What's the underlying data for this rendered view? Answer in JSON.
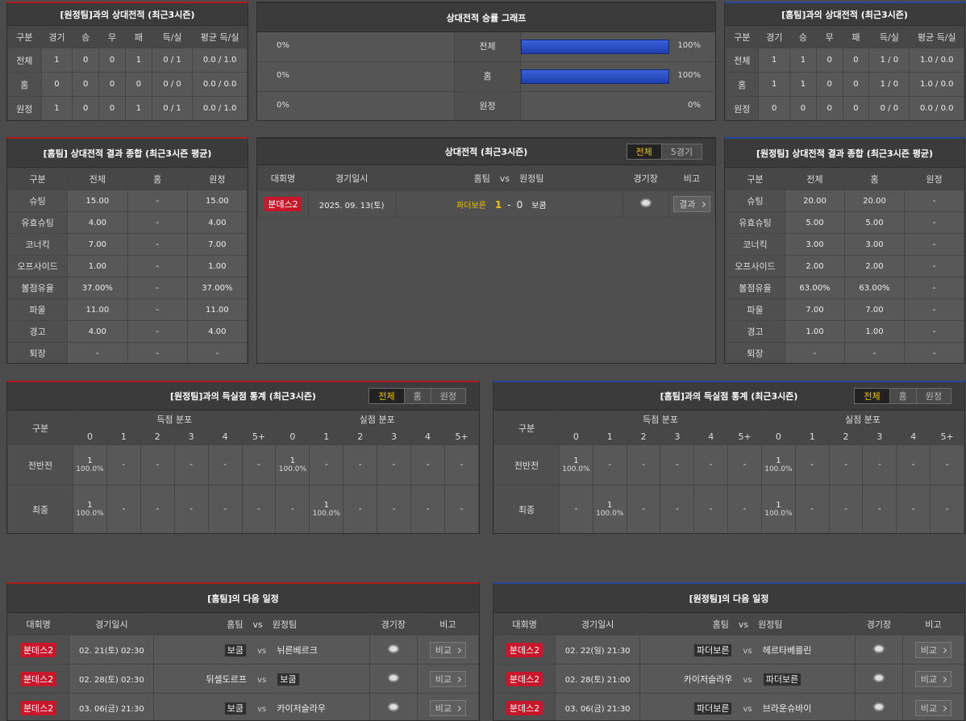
{
  "h2h_away": {
    "title": "[원정팀]과의 상대전적 (최근3시즌)",
    "columns": [
      "구분",
      "경기",
      "승",
      "무",
      "패",
      "득/실",
      "평균 득/실"
    ],
    "rows": [
      [
        "전체",
        "1",
        "0",
        "0",
        "1",
        "0 / 1",
        "0.0 / 1.0"
      ],
      [
        "홈",
        "0",
        "0",
        "0",
        "0",
        "0 / 0",
        "0.0 / 0.0"
      ],
      [
        "원정",
        "1",
        "0",
        "0",
        "1",
        "0 / 1",
        "0.0 / 1.0"
      ]
    ]
  },
  "graph": {
    "title": "상대전적 승률 그래프",
    "rows": [
      {
        "label": "전체",
        "values": [
          0,
          100
        ],
        "value_labels": [
          "0%",
          "100%"
        ]
      },
      {
        "label": "홈",
        "values": [
          0,
          100
        ],
        "value_labels": [
          "0%",
          "100%"
        ]
      },
      {
        "label": "원정",
        "values": [
          0,
          0
        ],
        "value_labels": [
          "0%",
          "0%"
        ]
      }
    ]
  },
  "h2h_home": {
    "title": "[홈팀]과의 상대전적 (최근3시즌)",
    "columns": [
      "구분",
      "경기",
      "승",
      "무",
      "패",
      "득/실",
      "평균 득/실"
    ],
    "rows": [
      [
        "전체",
        "1",
        "1",
        "0",
        "0",
        "1 / 0",
        "1.0 / 0.0"
      ],
      [
        "홈",
        "1",
        "1",
        "0",
        "0",
        "1 / 0",
        "1.0 / 0.0"
      ],
      [
        "원정",
        "0",
        "0",
        "0",
        "0",
        "0 / 0",
        "0.0 / 0.0"
      ]
    ]
  },
  "summary_home": {
    "title": "[홈팀] 상대전적 결과 종합 (최근3시즌 평균)",
    "columns": [
      "구분",
      "전체",
      "홈",
      "원정"
    ],
    "rows": [
      [
        "슈팅",
        "15.00",
        "-",
        "15.00"
      ],
      [
        "유효슈팅",
        "4.00",
        "-",
        "4.00"
      ],
      [
        "코너킥",
        "7.00",
        "-",
        "7.00"
      ],
      [
        "오프사이드",
        "1.00",
        "-",
        "1.00"
      ],
      [
        "볼점유율",
        "37.00%",
        "-",
        "37.00%"
      ],
      [
        "파울",
        "11.00",
        "-",
        "11.00"
      ],
      [
        "경고",
        "4.00",
        "-",
        "4.00"
      ],
      [
        "퇴장",
        "-",
        "-",
        "-"
      ]
    ]
  },
  "matches": {
    "title": "상대전적 (최근3시즌)",
    "tabs": [
      "전체",
      "5경기"
    ],
    "active_tab": 0,
    "columns": [
      "대회명",
      "경기일시",
      "홈팀",
      "vs",
      "원정팀",
      "경기장",
      "비고"
    ],
    "score_separator": "-",
    "button": "결과",
    "rows": [
      {
        "league": "분데스2",
        "date": "2025. 09. 13(토)",
        "home": "파더보른",
        "home_score": 1,
        "away_score": 0,
        "away": "보쿰"
      }
    ]
  },
  "summary_away": {
    "title": "[원정팀] 상대전적 결과 종합 (최근3시즌 평균)",
    "columns": [
      "구분",
      "전체",
      "홈",
      "원정"
    ],
    "rows": [
      [
        "슈팅",
        "20.00",
        "20.00",
        "-"
      ],
      [
        "유효슈팅",
        "5.00",
        "5.00",
        "-"
      ],
      [
        "코너킥",
        "3.00",
        "3.00",
        "-"
      ],
      [
        "오프사이드",
        "2.00",
        "2.00",
        "-"
      ],
      [
        "볼점유율",
        "63.00%",
        "63.00%",
        "-"
      ],
      [
        "파울",
        "7.00",
        "7.00",
        "-"
      ],
      [
        "경고",
        "1.00",
        "1.00",
        "-"
      ],
      [
        "퇴장",
        "-",
        "-",
        "-"
      ]
    ]
  },
  "goals_away": {
    "title": "[원정팀]과의 득실점 통계 (최근3시즌)",
    "tabs": [
      "전체",
      "홈",
      "원정"
    ],
    "active_tab": 0,
    "label_column": "구분",
    "groups": [
      "득점 분포",
      "실점 분포"
    ],
    "goal_columns": [
      "0",
      "1",
      "2",
      "3",
      "4",
      "5+"
    ],
    "rows": [
      {
        "label": "전반전",
        "scored": [
          [
            "1",
            "100.0%"
          ],
          "-",
          "-",
          "-",
          "-",
          "-"
        ],
        "conceded": [
          [
            "1",
            "100.0%"
          ],
          "-",
          "-",
          "-",
          "-",
          "-"
        ]
      },
      {
        "label": "최종",
        "scored": [
          [
            "1",
            "100.0%"
          ],
          "-",
          "-",
          "-",
          "-",
          "-"
        ],
        "conceded": [
          "-",
          [
            "1",
            "100.0%"
          ],
          "-",
          "-",
          "-",
          "-"
        ]
      }
    ]
  },
  "goals_home": {
    "title": "[홈팀]과의 득실점 통계 (최근3시즌)",
    "tabs": [
      "전체",
      "홈",
      "원정"
    ],
    "active_tab": 0,
    "label_column": "구분",
    "groups": [
      "득점 분포",
      "실점 분포"
    ],
    "goal_columns": [
      "0",
      "1",
      "2",
      "3",
      "4",
      "5+"
    ],
    "rows": [
      {
        "label": "전반전",
        "scored": [
          [
            "1",
            "100.0%"
          ],
          "-",
          "-",
          "-",
          "-",
          "-"
        ],
        "conceded": [
          [
            "1",
            "100.0%"
          ],
          "-",
          "-",
          "-",
          "-",
          "-"
        ]
      },
      {
        "label": "최종",
        "scored": [
          "-",
          [
            "1",
            "100.0%"
          ],
          "-",
          "-",
          "-",
          "-"
        ],
        "conceded": [
          [
            "1",
            "100.0%"
          ],
          "-",
          "-",
          "-",
          "-",
          "-"
        ]
      }
    ]
  },
  "next_home": {
    "title": "[홈팀]의 다음 일정",
    "columns": [
      "대회명",
      "경기일시",
      "홈팀",
      "vs",
      "원정팀",
      "경기장",
      "비고"
    ],
    "button": "비교",
    "rows": [
      {
        "league": "분데스2",
        "date": "02. 21(토) 02:30",
        "home": "보쿰",
        "away": "뉘른베르크",
        "highlight": "home"
      },
      {
        "league": "분데스2",
        "date": "02. 28(토) 02:30",
        "home": "뒤셀도르프",
        "away": "보쿰",
        "highlight": "away"
      },
      {
        "league": "분데스2",
        "date": "03. 06(금) 21:30",
        "home": "보쿰",
        "away": "카이저슬라우",
        "highlight": "home"
      }
    ]
  },
  "next_away": {
    "title": "[원정팀]의 다음 일정",
    "columns": [
      "대회명",
      "경기일시",
      "홈팀",
      "vs",
      "원정팀",
      "경기장",
      "비고"
    ],
    "button": "비교",
    "rows": [
      {
        "league": "분데스2",
        "date": "02. 22(일) 21:30",
        "home": "파더보른",
        "away": "헤르타베를린",
        "highlight": "home"
      },
      {
        "league": "분데스2",
        "date": "02. 28(토) 21:00",
        "home": "카이저슬라우",
        "away": "파더보른",
        "highlight": "away"
      },
      {
        "league": "분데스2",
        "date": "03. 06(금) 21:30",
        "home": "파더보른",
        "away": "브라운슈바이",
        "highlight": "home"
      }
    ]
  }
}
